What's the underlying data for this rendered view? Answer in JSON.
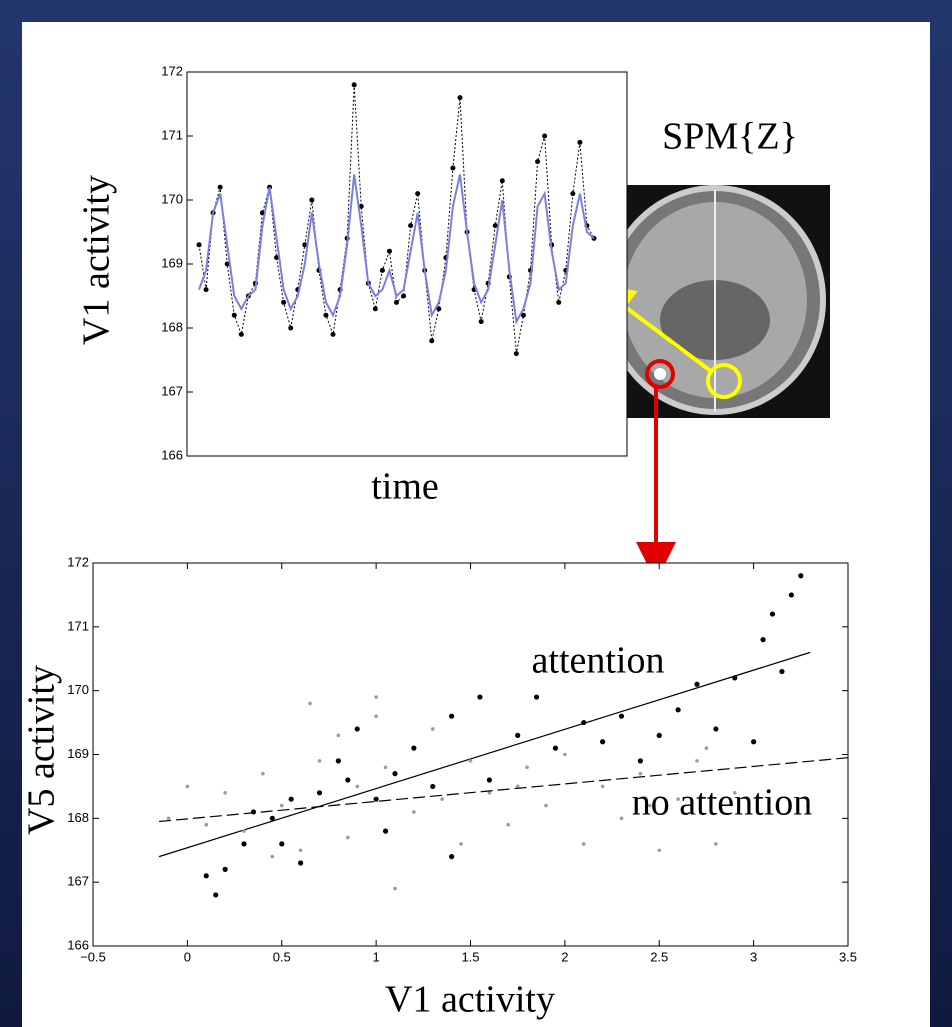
{
  "chart_data": [
    {
      "type": "line",
      "ylabel": "V1 activity",
      "xlabel": "time",
      "ylim": [
        166,
        172
      ],
      "yticks": [
        166,
        167,
        168,
        169,
        170,
        171,
        172
      ],
      "series": [
        {
          "color": "#000000",
          "style": "points",
          "values": [
            169.3,
            168.6,
            169.8,
            170.2,
            169.0,
            168.2,
            167.9,
            168.5,
            168.7,
            169.8,
            170.2,
            169.1,
            168.4,
            168.0,
            168.6,
            169.3,
            170.0,
            168.9,
            168.2,
            167.9,
            168.6,
            169.4,
            171.8,
            169.9,
            168.7,
            168.3,
            168.9,
            169.2,
            168.4,
            168.5,
            169.6,
            170.1,
            168.9,
            167.8,
            168.3,
            169.1,
            170.5,
            171.6,
            169.5,
            168.6,
            168.1,
            168.7,
            169.6,
            170.3,
            168.8,
            167.6,
            168.2,
            168.9,
            170.6,
            171.0,
            169.3,
            168.4,
            168.9,
            170.1,
            170.9,
            169.6,
            169.4
          ]
        },
        {
          "color": "#7b7fe0",
          "style": "line",
          "values": [
            168.6,
            168.9,
            169.8,
            170.1,
            169.3,
            168.5,
            168.3,
            168.5,
            168.6,
            169.6,
            170.2,
            169.4,
            168.6,
            168.3,
            168.5,
            169.0,
            169.8,
            169.0,
            168.4,
            168.2,
            168.5,
            169.3,
            170.4,
            169.6,
            168.7,
            168.5,
            168.6,
            168.9,
            168.5,
            168.6,
            169.2,
            169.8,
            168.9,
            168.2,
            168.4,
            168.9,
            169.9,
            170.4,
            169.5,
            168.7,
            168.4,
            168.6,
            169.3,
            170.0,
            168.9,
            168.1,
            168.3,
            168.7,
            169.9,
            170.1,
            169.2,
            168.6,
            168.7,
            169.6,
            170.1,
            169.5,
            169.4
          ]
        }
      ]
    },
    {
      "type": "scatter",
      "ylabel": "V5 activity",
      "xlabel": "V1 activity",
      "xlim": [
        -0.5,
        3.5
      ],
      "xticks": [
        {
          "value": -0.5,
          "label": "−0.5"
        },
        0,
        0.5,
        1,
        1.5,
        2,
        2.5,
        3,
        3.5
      ],
      "ylim": [
        166,
        172
      ],
      "yticks": [
        166,
        167,
        168,
        169,
        170,
        171,
        172
      ],
      "series": [
        {
          "name": "attention",
          "color": "#000000",
          "dash": "none",
          "x": [
            0.1,
            0.15,
            0.2,
            0.3,
            0.35,
            0.45,
            0.5,
            0.55,
            0.6,
            0.7,
            0.8,
            0.85,
            0.9,
            1.0,
            1.05,
            1.1,
            1.2,
            1.3,
            1.4,
            1.4,
            1.55,
            1.6,
            1.75,
            1.85,
            1.95,
            2.1,
            2.2,
            2.3,
            2.4,
            2.5,
            2.6,
            2.7,
            2.8,
            2.9,
            3.0,
            3.05,
            3.1,
            3.15,
            3.2,
            3.25
          ],
          "values": [
            167.1,
            166.8,
            167.2,
            167.6,
            168.1,
            168.0,
            167.6,
            168.3,
            167.3,
            168.4,
            168.9,
            168.6,
            169.4,
            168.3,
            167.8,
            168.7,
            169.1,
            168.5,
            169.6,
            167.4,
            169.9,
            168.6,
            169.3,
            169.9,
            169.1,
            169.5,
            169.2,
            169.6,
            168.9,
            169.3,
            169.7,
            170.1,
            169.4,
            170.2,
            169.2,
            170.8,
            171.2,
            170.3,
            171.5,
            171.8
          ],
          "fit": {
            "x": [
              -0.15,
              3.3
            ],
            "values": [
              167.4,
              170.6
            ]
          }
        },
        {
          "name": "no attention",
          "color": "#9a9aa8",
          "dash": "12 5",
          "x": [
            -0.1,
            0.0,
            0.1,
            0.2,
            0.3,
            0.4,
            0.5,
            0.6,
            0.7,
            0.8,
            0.85,
            0.9,
            1.0,
            1.05,
            1.1,
            1.2,
            1.3,
            1.35,
            1.45,
            1.5,
            1.6,
            1.7,
            1.8,
            1.9,
            2.0,
            2.1,
            2.2,
            2.3,
            2.4,
            2.5,
            2.6,
            2.7,
            2.8,
            2.9,
            0.65,
            1.0,
            0.45,
            1.75,
            2.45,
            2.75
          ],
          "values": [
            168.0,
            168.5,
            167.9,
            168.4,
            167.8,
            168.7,
            168.2,
            167.5,
            168.9,
            169.3,
            167.7,
            168.5,
            169.6,
            168.8,
            166.9,
            168.1,
            169.4,
            168.3,
            167.6,
            168.9,
            168.4,
            167.9,
            168.8,
            168.2,
            169.0,
            167.6,
            168.5,
            168.0,
            168.7,
            167.5,
            168.3,
            168.9,
            167.6,
            168.4,
            169.8,
            169.9,
            167.4,
            168.5,
            168.2,
            169.1
          ],
          "fit": {
            "x": [
              -0.15,
              3.5
            ],
            "values": [
              167.95,
              168.95
            ]
          }
        }
      ]
    }
  ],
  "image": {
    "label": "SPM{Z}"
  }
}
